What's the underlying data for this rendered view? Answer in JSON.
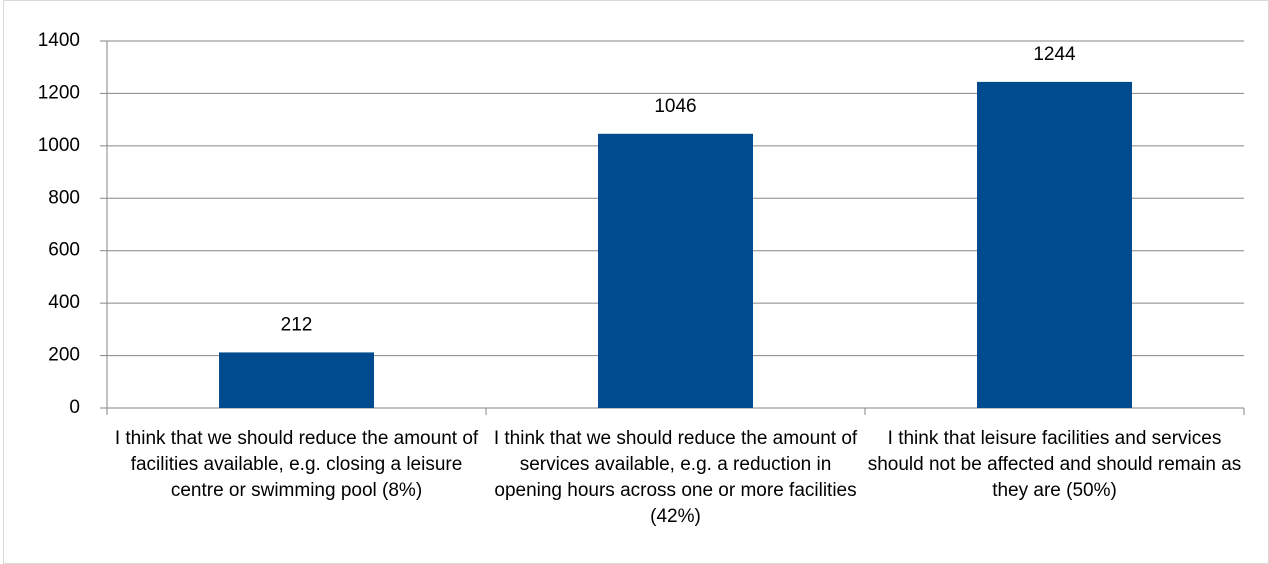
{
  "chart_data": {
    "type": "bar",
    "categories": [
      "I think that we should reduce the amount of facilities available, e.g. closing a leisure centre or swimming pool (8%)",
      "I think that we should reduce the amount of services available, e.g. a reduction in opening hours across one or more facilities (42%)",
      "I think that leisure facilities and services should not be affected and should remain as they are (50%)"
    ],
    "values": [
      212,
      1046,
      1244
    ],
    "color": "#004b8d",
    "ylim": [
      0,
      1400
    ],
    "yticks": [
      0,
      200,
      400,
      600,
      800,
      1000,
      1200,
      1400
    ],
    "grid": true
  }
}
